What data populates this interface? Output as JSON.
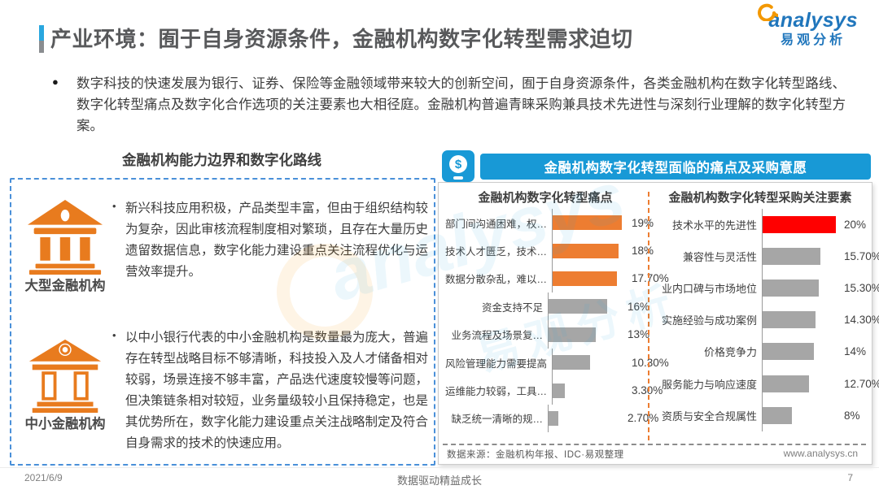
{
  "page": {
    "title": "产业环境：囿于自身资源条件，金融机构数字化转型需求迫切",
    "logo": {
      "brand": "analysys",
      "brand_cn": "易观分析"
    },
    "intro": "数字科技的快速发展为银行、证券、保险等金融领域带来较大的创新空间，囿于自身资源条件，各类金融机构在数字化转型路线、数字化转型痛点及数字化合作选项的关注要素也大相径庭。金融机构普遍青睐采购兼具技术先进性与深刻行业理解的数字化转型方案。",
    "footer": {
      "date": "2021/6/9",
      "slogan": "数据驱动精益成长",
      "page_number": "7"
    }
  },
  "left_panel": {
    "heading": "金融机构能力边界和数字化路线",
    "items": [
      {
        "label": "大型金融机构",
        "icon": "bank-solid-icon",
        "text": "新兴科技应用积极，产品类型丰富，但由于组织结构较为复杂，因此审核流程制度相对繁琐，且存在大量历史遗留数据信息，数字化能力建设重点关注流程优化与运营效率提升。"
      },
      {
        "label": "中小金融机构",
        "icon": "bank-outline-icon",
        "text": "以中小银行代表的中小金融机构是数量最为庞大，普遍存在转型战略目标不够清晰，科技投入及人才储备相对较弱，场景连接不够丰富，产品迭代速度较慢等问题，但决策链条相对较短，业务量级较小且保持稳定，也是其优势所在，数字化能力建设重点关注战略制定及符合自身需求的技术的快速应用。"
      }
    ]
  },
  "right_panel": {
    "banner": "金融机构数字化转型面临的痛点及采购意愿",
    "banner_icon": "mobile-payment-icon",
    "source": "数据来源：金融机构年报、IDC·易观整理",
    "website": "www.analysys.cn"
  },
  "chart_data": [
    {
      "type": "bar",
      "orientation": "horizontal",
      "title": "金融机构数字化转型痛点",
      "categories": [
        "部门间沟通困难，权…",
        "技术人才匮乏，技术…",
        "数据分散杂乱，难以…",
        "资金支持不足",
        "业务流程及场景复…",
        "风险管理能力需要提高",
        "运维能力较弱，工具…",
        "缺乏统一清晰的规…"
      ],
      "values": [
        19,
        18,
        17.7,
        16,
        13,
        10.3,
        3.3,
        2.7
      ],
      "value_labels": [
        "19%",
        "18%",
        "17.70%",
        "16%",
        "13%",
        "10.30%",
        "3.30%",
        "2.70%"
      ],
      "colors": [
        "#ED7D31",
        "#ED7D31",
        "#ED7D31",
        "#A6A6A6",
        "#A6A6A6",
        "#A6A6A6",
        "#A6A6A6",
        "#A6A6A6"
      ],
      "xlabel": "",
      "ylabel": "",
      "xlim": [
        0,
        20.5
      ],
      "grid": false,
      "legend": false
    },
    {
      "type": "bar",
      "orientation": "horizontal",
      "title": "金融机构数字化转型采购关注要素",
      "categories": [
        "技术水平的先进性",
        "兼容性与灵活性",
        "业内口碑与市场地位",
        "实施经验与成功案例",
        "价格竞争力",
        "服务能力与响应速度",
        "资质与安全合规属性"
      ],
      "values": [
        20,
        15.7,
        15.3,
        14.3,
        14,
        12.7,
        8
      ],
      "value_labels": [
        "20%",
        "15.70%",
        "15.30%",
        "14.30%",
        "14%",
        "12.70%",
        "8%"
      ],
      "colors": [
        "#FF0000",
        "#A6A6A6",
        "#A6A6A6",
        "#A6A6A6",
        "#A6A6A6",
        "#A6A6A6",
        "#A6A6A6"
      ],
      "xlabel": "",
      "ylabel": "",
      "xlim": [
        0,
        21
      ],
      "grid": false,
      "legend": false
    }
  ],
  "colors": {
    "accent_blue": "#1899D6",
    "pain_orange": "#ED7D31",
    "neutral_gray": "#A6A6A6",
    "highlight_red": "#FF0000",
    "dashed_border_blue": "#4A90D9",
    "logo_blue": "#2076BC",
    "logo_orange": "#F39800"
  }
}
